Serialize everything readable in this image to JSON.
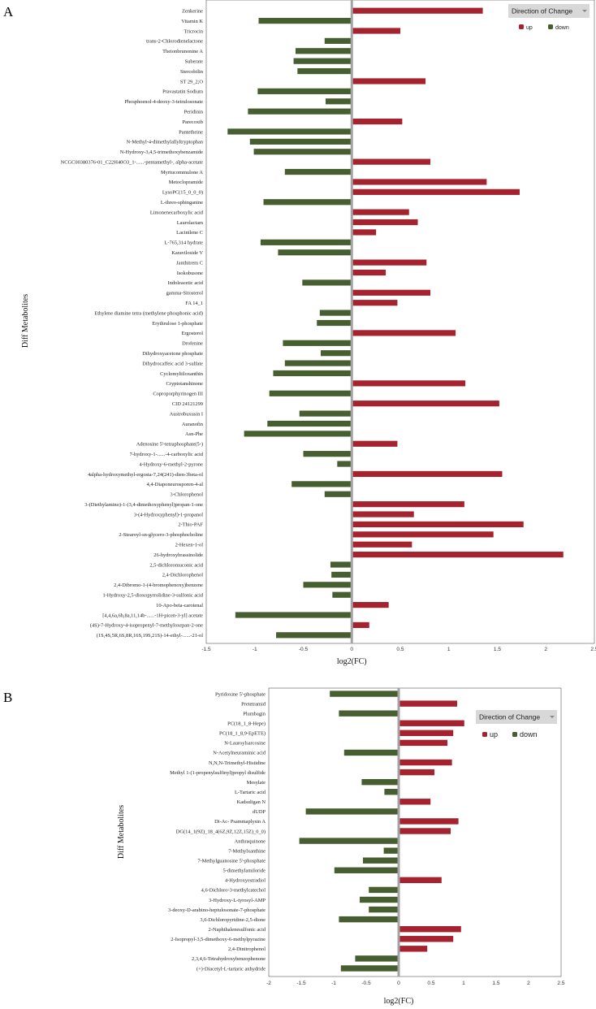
{
  "colors": {
    "up": "#a5222f",
    "down": "#465e30",
    "zero_line": "#a3a3a3"
  },
  "chart_data": [
    {
      "panel_label": "A",
      "type": "bar",
      "orientation": "horizontal",
      "ylabel": "Diff Metabolites",
      "xlabel": "log2(FC)",
      "xlim": [
        -1.5,
        2.5
      ],
      "xticks": [
        -1.5,
        -1,
        -0.5,
        0,
        0.5,
        1,
        1.5,
        2,
        2.5
      ],
      "grid": false,
      "legend": {
        "title": "Direction of Change",
        "placement": "top-right",
        "entries": [
          "up",
          "down"
        ]
      },
      "categories": [
        "Zenkerine",
        "Vitamin K",
        "Tricrocin",
        "trans-2-Chlorodienelactone",
        "Theionbrunonine A",
        "Suberate",
        "Stercobilin",
        "ST 29_2;O",
        "Pravastatin Sodium",
        "Phosphoenol-4-deoxy-3-tetrulosonate",
        "Peridinin",
        "Parecoxib",
        "Pantetheine",
        "N-Methyl-4-dimethylallyltryptophan",
        "N-Hydroxy-3,4,5-trimethoxybenzamide",
        "NCGC00380376-01_C22H40O3_1-......-pentamethyl-, alpha-acetate",
        "Myrtucommulone A",
        "Metoclopramide",
        "LysoPC(15_0_0_0)",
        "L-threo-sphinganine",
        "Limonenecarboxylic acid",
        "Laurolactam",
        "Lacinilene C",
        "L-765,314 hydrate",
        "Karaviloside V",
        "Janthitrem C",
        "Isokobusone",
        "Indoleacetic acid",
        "gamma-Sitosterol",
        "FA 14_1",
        "Ethylene diamine tetra (methylene phosphonic acid)",
        "Erythrulose 1-phosphate",
        "Ergosterol",
        "Drofenine",
        "Dihydroxyacetone phosphate",
        "Dihydrocaffeic acid 3-sulfate",
        "Cyclomyltiloxanthin",
        "Cryptotanshinone",
        "Coproporphyrinogen III",
        "CID 24121299",
        "Austrobuxusin I",
        "Auranofin",
        "Asn-Phe",
        "Adenosine 5'-tetraphosphate(5-)",
        "7-hydroxy-1-......-4-carboxylic acid",
        "4-Hydroxy-6-methyl-2-pyrone",
        "4alpha-hydroxymethyl-ergosta-7,24(241)-dien-3beta-ol",
        "4,4-Diaponeurosporen-4-al",
        "3-Chlorophenol",
        "3-(Diethylamino)-1-(3,4-dimethoxyphenyl)propan-1-one",
        "3-(4-Hydroxyphenyl)-1-propanol",
        "2-Thio-PAF",
        "2-Stearoyl-sn-glycero-3-phosphocholine",
        "2-Hexen-1-ol",
        "26-hydroxybrassinolide",
        "2,5-dichloromuconic acid",
        "2,4-Dichlorophenol",
        "2,4-Dibromo-1-(4-bromophenoxy)benzene",
        "1-Hydroxy-2,5-dioxopyrrolidine-3-sulfonic acid",
        "10-Apo-beta-carotenal",
        "[4,4,6a,6b,8a,11,14b-......-1H-picen-3-yl] acetate",
        "(4S)-7-Hydroxy-4-isopropenyl-7-methyloxepan-2-one",
        "(1S,4S,5R,6S,8R,16S,19S,21S)-14-ethyl-......-21-ol"
      ],
      "values": [
        1.35,
        -0.96,
        0.5,
        -0.28,
        -0.58,
        -0.6,
        -0.56,
        0.76,
        -0.97,
        -0.27,
        -1.07,
        0.52,
        -1.28,
        -1.05,
        -1.01,
        0.81,
        -0.69,
        1.39,
        1.73,
        -0.91,
        0.59,
        0.68,
        0.25,
        -0.94,
        -0.76,
        0.77,
        0.35,
        -0.51,
        0.81,
        0.47,
        -0.33,
        -0.36,
        1.07,
        -0.71,
        -0.32,
        -0.69,
        -0.81,
        1.17,
        -0.85,
        1.52,
        -0.54,
        -0.87,
        -1.11,
        0.47,
        -0.5,
        -0.15,
        1.55,
        -0.62,
        -0.28,
        1.16,
        0.64,
        1.77,
        1.46,
        0.62,
        2.18,
        -0.22,
        -0.21,
        -0.5,
        -0.2,
        0.38,
        -1.2,
        0.18,
        -0.78
      ]
    },
    {
      "panel_label": "B",
      "type": "bar",
      "orientation": "horizontal",
      "ylabel": "Diff Metabolites",
      "xlabel": "log2(FC)",
      "xlim": [
        -2,
        2.5
      ],
      "xticks": [
        -2,
        -1.5,
        -1,
        -0.5,
        0,
        0.5,
        1,
        1.5,
        2,
        2.5
      ],
      "grid": false,
      "legend": {
        "title": "Direction of Change",
        "placement": "top-right",
        "entries": [
          "up",
          "down"
        ]
      },
      "categories": [
        "Pyridoxine 5'-phosphate",
        "Pretetramid",
        "Plumbagin",
        "PC(18_1_8-Hepe)",
        "PC(18_1_8,9-EpETE)",
        "N-Lauroylsarcosine",
        "N-Acetylneuraminic acid",
        "N,N,N-Trimethyl-Histidine",
        "Methyl 1-(1-propenylsulfinyl)propyl disulfide",
        "Mesylate",
        "L-Tartaric acid",
        "Kadsuligan N",
        "dUDP",
        "Di-Ac- Psammaplysin A",
        "DG(14_1(9Z)_18_4(6Z,9Z,12Z,15Z)_0_0)",
        "Anthraquinone",
        "7-Methylxanthine",
        "7-Methylguanosine 5'-phosphate",
        "5-dimethylamiloride",
        "4-Hydroxyestradiol",
        "4,6-Dichloro-3-methylcatechol",
        "3-Hydroxy-L-tyrosyl-AMP",
        "3-deoxy-D-arabino-heptulosonate-7-phosphate",
        "3,6-Dichloropyridine-2,5-dione",
        "2-Naphthalenesulfonic acid",
        "2-Isopropyl-3,5-dimethoxy-6-methylpyrazine",
        "2,4-Dinitrophenol",
        "2,3,4,6-Tetrahydroxybenzophenone",
        "(+)-Diacetyl-L-tartaric anhydride"
      ],
      "values": [
        -1.06,
        0.9,
        -0.92,
        1.01,
        0.84,
        0.75,
        -0.84,
        0.82,
        0.55,
        -0.57,
        -0.22,
        0.49,
        -1.43,
        0.92,
        0.8,
        -1.53,
        -0.23,
        -0.55,
        -0.99,
        0.66,
        -0.46,
        -0.6,
        -0.46,
        -0.92,
        0.96,
        0.84,
        0.44,
        -0.67,
        -0.89
      ]
    }
  ]
}
